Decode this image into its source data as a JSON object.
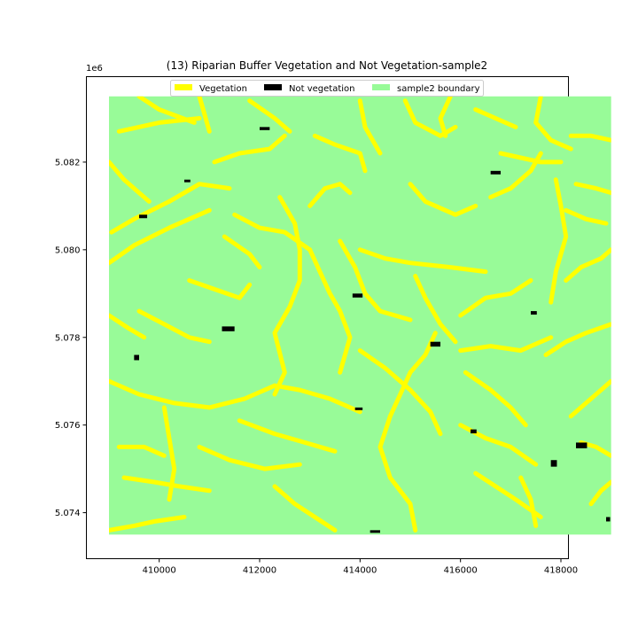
{
  "chart_data": {
    "type": "map",
    "title": "(13) Riparian Buffer Vegetation and Not Vegetation-sample2",
    "xlabel": "",
    "ylabel": "",
    "y_offset_label": "1e6",
    "xlim": [
      408550,
      418150
    ],
    "ylim": [
      5072950,
      5083950
    ],
    "x_ticks": [
      410000,
      412000,
      414000,
      416000,
      418000
    ],
    "x_tick_labels": [
      "410000",
      "412000",
      "414000",
      "416000",
      "418000"
    ],
    "y_ticks": [
      5074000,
      5076000,
      5078000,
      5080000,
      5082000
    ],
    "y_tick_labels": [
      "5.074",
      "5.076",
      "5.078",
      "5.080",
      "5.082"
    ],
    "boundary_extent": {
      "x": [
        409000,
        419000
      ],
      "y": [
        5073500,
        5083500
      ]
    },
    "legend": {
      "placement": "top-center",
      "entries": [
        {
          "label": "Vegetation",
          "color": "#ffff00"
        },
        {
          "label": "Not vegetation",
          "color": "#000000"
        },
        {
          "label": "sample2 boundary",
          "color": "#98fb98"
        }
      ]
    },
    "grid": false,
    "vegetation_streams": [
      [
        [
          409000,
          5082000
        ],
        [
          409300,
          5081600
        ],
        [
          409600,
          5081300
        ],
        [
          409800,
          5081100
        ]
      ],
      [
        [
          409000,
          5079700
        ],
        [
          409500,
          5080100
        ],
        [
          410200,
          5080500
        ],
        [
          411000,
          5080900
        ]
      ],
      [
        [
          409050,
          5080400
        ],
        [
          409500,
          5080700
        ],
        [
          410200,
          5081100
        ]
      ],
      [
        [
          410200,
          5081100
        ],
        [
          410800,
          5081500
        ],
        [
          411400,
          5081400
        ]
      ],
      [
        [
          409200,
          5082700
        ],
        [
          410000,
          5082900
        ],
        [
          410800,
          5083000
        ]
      ],
      [
        [
          409600,
          5083500
        ],
        [
          410000,
          5083200
        ],
        [
          410700,
          5082900
        ]
      ],
      [
        [
          410800,
          5083500
        ],
        [
          410900,
          5083100
        ],
        [
          411000,
          5082700
        ]
      ],
      [
        [
          411100,
          5082000
        ],
        [
          411600,
          5082200
        ],
        [
          412200,
          5082300
        ],
        [
          412500,
          5082600
        ]
      ],
      [
        [
          411800,
          5083400
        ],
        [
          412300,
          5083000
        ],
        [
          412600,
          5082700
        ]
      ],
      [
        [
          413100,
          5082600
        ],
        [
          413500,
          5082400
        ],
        [
          414000,
          5082200
        ],
        [
          414100,
          5081800
        ]
      ],
      [
        [
          413000,
          5081000
        ],
        [
          413300,
          5081400
        ],
        [
          413600,
          5081500
        ],
        [
          413800,
          5081300
        ]
      ],
      [
        [
          411500,
          5080800
        ],
        [
          412000,
          5080500
        ],
        [
          412500,
          5080400
        ],
        [
          413000,
          5080000
        ]
      ],
      [
        [
          412400,
          5081200
        ],
        [
          412700,
          5080600
        ],
        [
          412800,
          5080000
        ],
        [
          412800,
          5079300
        ],
        [
          412600,
          5078700
        ],
        [
          412300,
          5078100
        ],
        [
          412500,
          5077200
        ],
        [
          412300,
          5076700
        ]
      ],
      [
        [
          413000,
          5080000
        ],
        [
          413200,
          5079500
        ],
        [
          413400,
          5079000
        ],
        [
          413600,
          5078600
        ],
        [
          413800,
          5078000
        ],
        [
          413600,
          5077200
        ]
      ],
      [
        [
          409000,
          5078500
        ],
        [
          409400,
          5078200
        ],
        [
          409700,
          5078000
        ]
      ],
      [
        [
          409000,
          5077000
        ],
        [
          409600,
          5076700
        ],
        [
          410300,
          5076500
        ],
        [
          411000,
          5076400
        ],
        [
          411700,
          5076600
        ],
        [
          412300,
          5076900
        ]
      ],
      [
        [
          412300,
          5076900
        ],
        [
          412800,
          5076800
        ],
        [
          413400,
          5076600
        ],
        [
          414000,
          5076300
        ]
      ],
      [
        [
          409200,
          5075500
        ],
        [
          409700,
          5075500
        ],
        [
          410100,
          5075300
        ]
      ],
      [
        [
          410100,
          5076400
        ],
        [
          410200,
          5075700
        ],
        [
          410300,
          5075000
        ],
        [
          410200,
          5074300
        ]
      ],
      [
        [
          409300,
          5074800
        ],
        [
          409900,
          5074700
        ],
        [
          410400,
          5074600
        ],
        [
          411000,
          5074500
        ]
      ],
      [
        [
          409000,
          5073600
        ],
        [
          409500,
          5073700
        ],
        [
          409900,
          5073800
        ],
        [
          410500,
          5073900
        ]
      ],
      [
        [
          410800,
          5075500
        ],
        [
          411400,
          5075200
        ],
        [
          412100,
          5075000
        ],
        [
          412800,
          5075100
        ]
      ],
      [
        [
          411600,
          5076100
        ],
        [
          412300,
          5075800
        ],
        [
          412900,
          5075600
        ],
        [
          413500,
          5075400
        ]
      ],
      [
        [
          412300,
          5074600
        ],
        [
          412700,
          5074200
        ],
        [
          413100,
          5073900
        ],
        [
          413500,
          5073600
        ]
      ],
      [
        [
          414000,
          5083400
        ],
        [
          414100,
          5082800
        ],
        [
          414400,
          5082200
        ]
      ],
      [
        [
          414900,
          5083400
        ],
        [
          415100,
          5082900
        ],
        [
          415600,
          5082600
        ],
        [
          415900,
          5082800
        ]
      ],
      [
        [
          415000,
          5081500
        ],
        [
          415300,
          5081100
        ],
        [
          415900,
          5080800
        ],
        [
          416300,
          5081000
        ]
      ],
      [
        [
          414000,
          5080000
        ],
        [
          414500,
          5079800
        ],
        [
          415000,
          5079700
        ],
        [
          415800,
          5079600
        ],
        [
          416500,
          5079500
        ]
      ],
      [
        [
          413600,
          5080200
        ],
        [
          413900,
          5079600
        ],
        [
          414100,
          5079000
        ],
        [
          414400,
          5078600
        ],
        [
          415000,
          5078400
        ]
      ],
      [
        [
          415100,
          5079400
        ],
        [
          415300,
          5078900
        ],
        [
          415600,
          5078300
        ],
        [
          415900,
          5077900
        ]
      ],
      [
        [
          414000,
          5077700
        ],
        [
          414500,
          5077300
        ],
        [
          415000,
          5076800
        ],
        [
          415400,
          5076300
        ],
        [
          415600,
          5075800
        ]
      ],
      [
        [
          415500,
          5078100
        ],
        [
          415300,
          5077600
        ],
        [
          415000,
          5077200
        ],
        [
          414800,
          5076700
        ],
        [
          414600,
          5076200
        ],
        [
          414400,
          5075500
        ],
        [
          414600,
          5074800
        ],
        [
          415000,
          5074200
        ],
        [
          415100,
          5073600
        ]
      ],
      [
        [
          416000,
          5077700
        ],
        [
          416600,
          5077800
        ],
        [
          417200,
          5077700
        ],
        [
          417800,
          5078000
        ]
      ],
      [
        [
          416100,
          5077200
        ],
        [
          416600,
          5076800
        ],
        [
          417000,
          5076400
        ],
        [
          417300,
          5076000
        ]
      ],
      [
        [
          416000,
          5076000
        ],
        [
          416500,
          5075700
        ],
        [
          417000,
          5075500
        ],
        [
          417500,
          5075100
        ]
      ],
      [
        [
          416300,
          5074900
        ],
        [
          416700,
          5074600
        ],
        [
          417100,
          5074300
        ],
        [
          417600,
          5073900
        ]
      ],
      [
        [
          417200,
          5074800
        ],
        [
          417400,
          5074300
        ],
        [
          417500,
          5073700
        ]
      ],
      [
        [
          416800,
          5082200
        ],
        [
          417200,
          5082100
        ],
        [
          417600,
          5082000
        ],
        [
          418000,
          5082000
        ]
      ],
      [
        [
          416600,
          5081200
        ],
        [
          417000,
          5081400
        ],
        [
          417400,
          5081800
        ],
        [
          417600,
          5082200
        ]
      ],
      [
        [
          417600,
          5083500
        ],
        [
          417500,
          5082900
        ],
        [
          417800,
          5082500
        ],
        [
          418200,
          5082300
        ]
      ],
      [
        [
          417900,
          5081600
        ],
        [
          418000,
          5081000
        ],
        [
          418100,
          5080300
        ],
        [
          417900,
          5079500
        ],
        [
          417800,
          5078800
        ]
      ],
      [
        [
          418100,
          5079300
        ],
        [
          418400,
          5079600
        ],
        [
          418800,
          5079800
        ],
        [
          419000,
          5080000
        ]
      ],
      [
        [
          417700,
          5077600
        ],
        [
          418100,
          5077900
        ],
        [
          418500,
          5078100
        ],
        [
          419000,
          5078300
        ]
      ],
      [
        [
          418200,
          5076200
        ],
        [
          418500,
          5076500
        ],
        [
          418800,
          5076800
        ],
        [
          419000,
          5077000
        ]
      ],
      [
        [
          417400,
          5079300
        ],
        [
          417000,
          5079000
        ],
        [
          416500,
          5078900
        ],
        [
          416000,
          5078500
        ]
      ],
      [
        [
          418400,
          5075600
        ],
        [
          418700,
          5075500
        ],
        [
          419000,
          5075300
        ]
      ],
      [
        [
          418600,
          5074200
        ],
        [
          418800,
          5074500
        ],
        [
          419000,
          5074700
        ]
      ],
      [
        [
          418200,
          5082600
        ],
        [
          418600,
          5082600
        ],
        [
          419000,
          5082500
        ]
      ],
      [
        [
          418300,
          5081500
        ],
        [
          418700,
          5081400
        ],
        [
          419000,
          5081300
        ]
      ],
      [
        [
          418100,
          5080900
        ],
        [
          418500,
          5080700
        ],
        [
          418900,
          5080600
        ]
      ],
      [
        [
          415800,
          5083500
        ],
        [
          415600,
          5083000
        ],
        [
          415700,
          5082600
        ]
      ],
      [
        [
          416300,
          5083200
        ],
        [
          416700,
          5083000
        ],
        [
          417100,
          5082800
        ]
      ],
      [
        [
          409600,
          5078600
        ],
        [
          410100,
          5078300
        ],
        [
          410600,
          5078000
        ],
        [
          411000,
          5077900
        ]
      ],
      [
        [
          410600,
          5079300
        ],
        [
          411100,
          5079100
        ],
        [
          411600,
          5078900
        ],
        [
          411800,
          5079200
        ]
      ],
      [
        [
          411300,
          5080300
        ],
        [
          411800,
          5079900
        ],
        [
          412000,
          5079600
        ]
      ]
    ],
    "not_vegetation_patches": [
      [
        411250,
        5078250,
        250,
        110
      ],
      [
        413850,
        5079000,
        200,
        90
      ],
      [
        409600,
        5080800,
        160,
        80
      ],
      [
        416600,
        5081800,
        200,
        80
      ],
      [
        415400,
        5077900,
        200,
        110
      ],
      [
        418300,
        5075600,
        220,
        130
      ],
      [
        417800,
        5075200,
        120,
        150
      ],
      [
        417400,
        5078600,
        120,
        80
      ],
      [
        412000,
        5082800,
        200,
        70
      ],
      [
        409500,
        5077600,
        100,
        120
      ],
      [
        416200,
        5075900,
        120,
        90
      ],
      [
        414200,
        5073600,
        200,
        60
      ],
      [
        418900,
        5073900,
        80,
        100
      ],
      [
        410500,
        5081600,
        120,
        60
      ],
      [
        413900,
        5076400,
        150,
        60
      ]
    ]
  }
}
